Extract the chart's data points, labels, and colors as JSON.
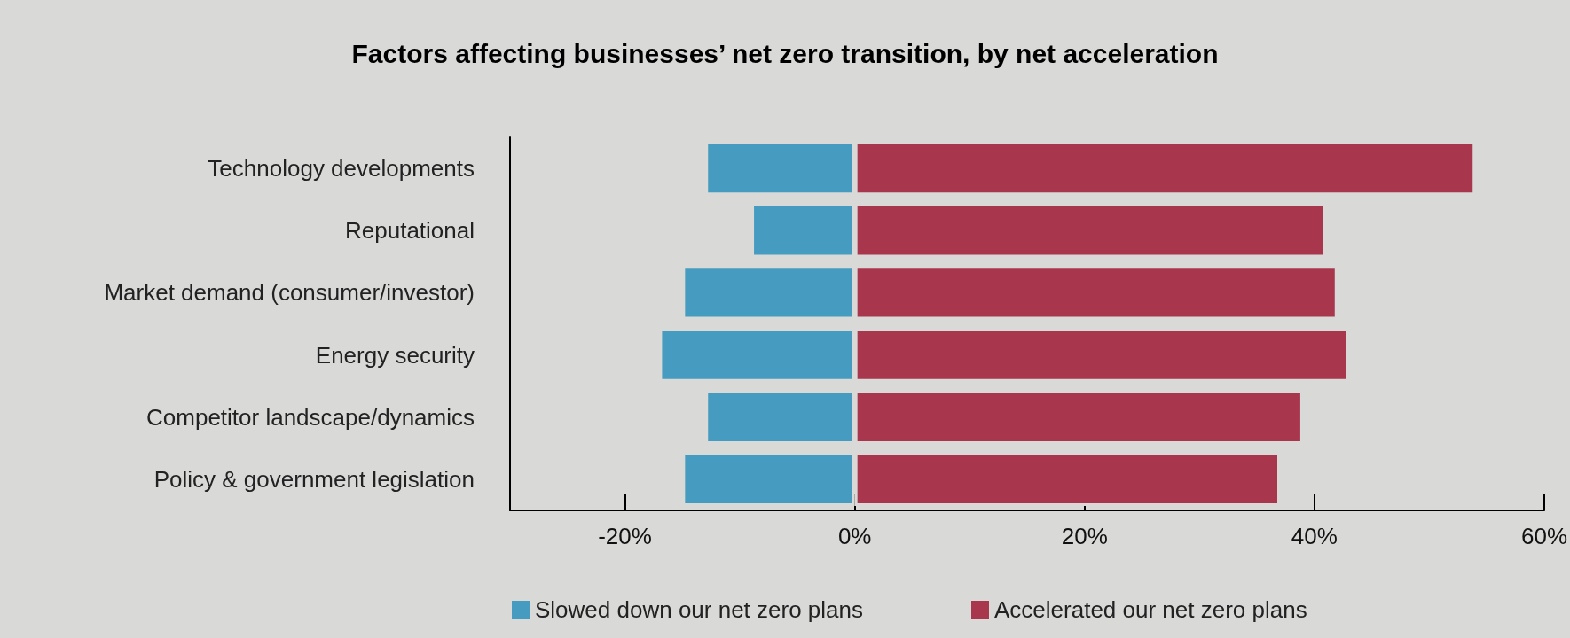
{
  "chart_data": {
    "type": "bar",
    "title": "Factors affecting businesses’ net zero transition, by net acceleration",
    "orientation": "horizontal",
    "stacked": true,
    "categories": [
      "Technology developments",
      "Reputational",
      "Market demand (consumer/investor)",
      "Energy security",
      "Competitor landscape/dynamics",
      "Policy & government legislation"
    ],
    "series": [
      {
        "name": "Slowed down our net zero plans",
        "color": "#459cc0",
        "values": [
          -13,
          -9,
          -15,
          -17,
          -13,
          -15
        ]
      },
      {
        "name": "Accelerated our net zero plans",
        "color": "#a8374e",
        "values": [
          54,
          41,
          42,
          43,
          39,
          37
        ]
      }
    ],
    "xlim": [
      -30,
      60
    ],
    "xticks": [
      {
        "value": -20,
        "label": "-20%"
      },
      {
        "value": 0,
        "label": "0%"
      },
      {
        "value": 20,
        "label": "20%"
      },
      {
        "value": 40,
        "label": "40%"
      },
      {
        "value": 60,
        "label": "60%"
      }
    ],
    "grid": false,
    "legend": "bottom"
  }
}
